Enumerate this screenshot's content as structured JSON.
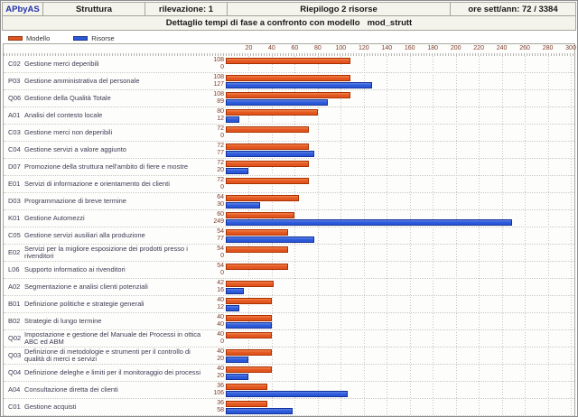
{
  "header": {
    "logo": "APbyAS",
    "section": "Struttura",
    "rilevazione": "rilevazione: 1",
    "riepilogo": "Riepilogo 2 risorse",
    "ore": "ore sett/ann: 72 / 3384",
    "subtitle": "Dettaglio tempi di fase a confronto con modello",
    "model_name": "mod_strutt"
  },
  "legend": {
    "items": [
      {
        "label": "Modello",
        "color": "#e2551e"
      },
      {
        "label": "Risorse",
        "color": "#2a58d8"
      }
    ]
  },
  "chart_data": {
    "type": "bar",
    "orientation": "horizontal",
    "title": "Dettaglio tempi di fase a confronto con modello mod_strutt",
    "xlabel": "",
    "ylabel": "",
    "xlim": [
      0,
      300
    ],
    "grid": true,
    "legend_position": "top-left",
    "ticks": [
      20,
      40,
      60,
      80,
      100,
      120,
      140,
      160,
      180,
      200,
      220,
      240,
      260,
      280,
      300
    ],
    "categories": [
      {
        "code": "C02",
        "label": "Gestione merci deperibili"
      },
      {
        "code": "P03",
        "label": "Gestione amministrativa del personale"
      },
      {
        "code": "Q06",
        "label": "Gestione della Qualità Totale"
      },
      {
        "code": "A01",
        "label": "Analisi del contesto locale"
      },
      {
        "code": "C03",
        "label": "Gestione merci non deperibili"
      },
      {
        "code": "C04",
        "label": "Gestione servizi a valore aggiunto"
      },
      {
        "code": "D07",
        "label": "Promozione della struttura nell'ambito di fiere e mostre"
      },
      {
        "code": "E01",
        "label": "Servizi di informazione e orientamento dei clienti"
      },
      {
        "code": "D03",
        "label": "Programmazione di breve termine"
      },
      {
        "code": "K01",
        "label": "Gestione Automezzi"
      },
      {
        "code": "C05",
        "label": "Gestione servizi ausiliari alla produzione"
      },
      {
        "code": "E02",
        "label": "Servizi per la migliore esposizione dei prodotti presso i rivenditori"
      },
      {
        "code": "L06",
        "label": "Supporto informatico ai rivenditori"
      },
      {
        "code": "A02",
        "label": "Segmentazione e analisi clienti potenziali"
      },
      {
        "code": "B01",
        "label": "Definizione politiche e strategie generali"
      },
      {
        "code": "B02",
        "label": "Strategie di lungo termine"
      },
      {
        "code": "Q02",
        "label": "Impostazione e gestione del Manuale dei Processi in ottica ABC ed ABM"
      },
      {
        "code": "Q03",
        "label": "Definizione di metodologie e strumenti per il controllo di qualità di merci e servizi"
      },
      {
        "code": "Q04",
        "label": "Definizione deleghe e limiti per il monitoraggio dei processi"
      },
      {
        "code": "A04",
        "label": "Consultazione diretta dei clienti"
      },
      {
        "code": "C01",
        "label": "Gestione acquisti"
      }
    ],
    "series": [
      {
        "name": "Modello",
        "color": "#e2551e",
        "border": "#a93000",
        "values": [
          108,
          108,
          108,
          80,
          72,
          72,
          72,
          72,
          64,
          60,
          54,
          54,
          54,
          42,
          40,
          40,
          40,
          40,
          40,
          36,
          36
        ]
      },
      {
        "name": "Risorse",
        "color": "#2a58d8",
        "border": "#12309a",
        "values": [
          0,
          127,
          89,
          12,
          0,
          77,
          20,
          0,
          30,
          249,
          77,
          0,
          0,
          16,
          12,
          40,
          0,
          20,
          20,
          106,
          58
        ]
      }
    ]
  }
}
